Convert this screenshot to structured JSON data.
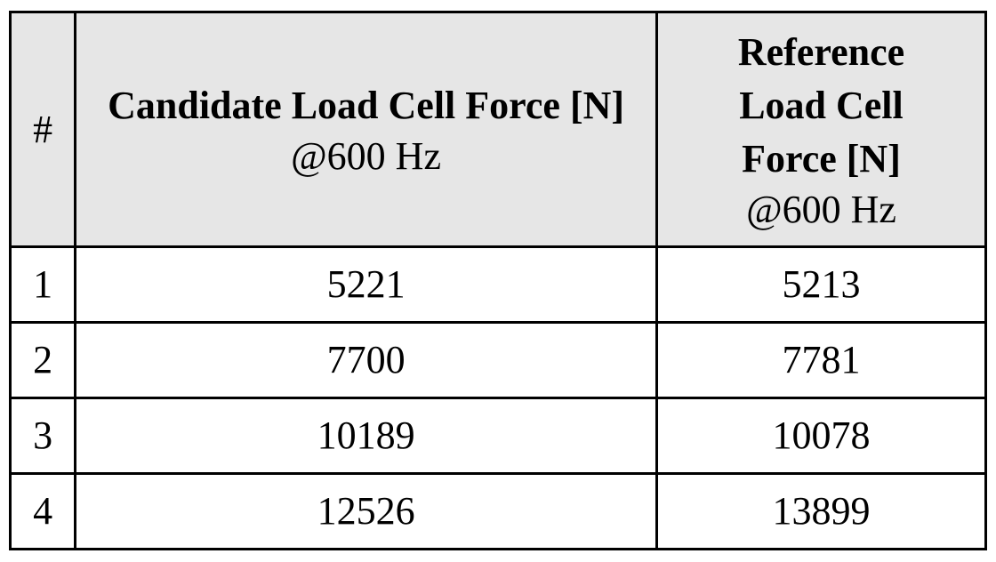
{
  "table": {
    "headers": {
      "index": "#",
      "candidate": {
        "title": "Candidate Load Cell Force [N]",
        "subtitle": "@600 Hz"
      },
      "reference": {
        "title": "Reference Load Cell Force [N]",
        "subtitle": "@600 Hz"
      }
    },
    "rows": [
      {
        "index": "1",
        "candidate": "5221",
        "reference": "5213"
      },
      {
        "index": "2",
        "candidate": "7700",
        "reference": "7781"
      },
      {
        "index": "3",
        "candidate": "10189",
        "reference": "10078"
      },
      {
        "index": "4",
        "candidate": "12526",
        "reference": "13899"
      }
    ]
  }
}
